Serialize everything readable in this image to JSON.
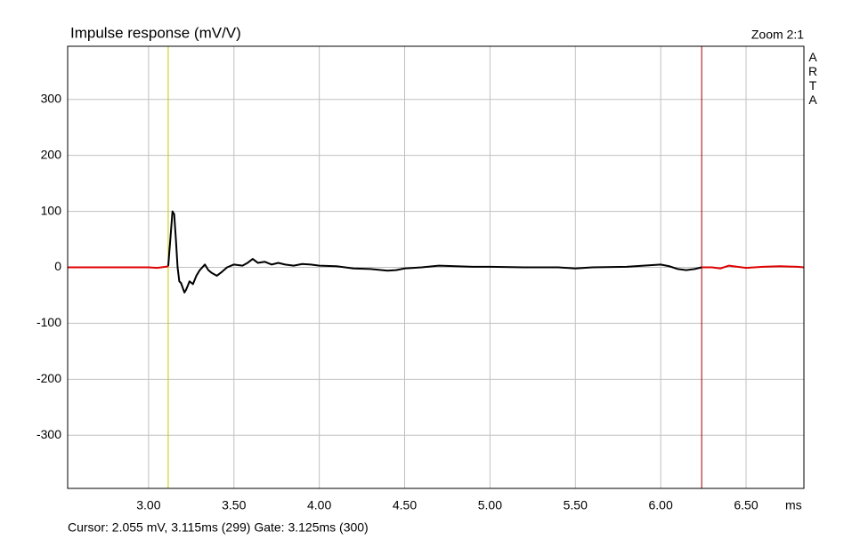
{
  "chart_data": {
    "type": "line",
    "title": "Impulse response (mV/V)",
    "zoom_label": "Zoom 2:1",
    "brand": "ARTA",
    "x_label": "ms",
    "status": "Cursor: 2.055 mV, 3.115ms (299)  Gate: 3.125ms (300)",
    "x": [
      2.526,
      3.0,
      3.05,
      3.1,
      3.115,
      3.13,
      3.14,
      3.15,
      3.16,
      3.17,
      3.18,
      3.19,
      3.21,
      3.22,
      3.24,
      3.26,
      3.28,
      3.3,
      3.33,
      3.35,
      3.37,
      3.4,
      3.43,
      3.46,
      3.5,
      3.55,
      3.58,
      3.61,
      3.64,
      3.68,
      3.72,
      3.76,
      3.8,
      3.85,
      3.9,
      3.95,
      4.0,
      4.1,
      4.2,
      4.3,
      4.4,
      4.45,
      4.5,
      4.6,
      4.7,
      4.8,
      4.9,
      5.0,
      5.2,
      5.4,
      5.5,
      5.6,
      5.8,
      5.9,
      6.0,
      6.05,
      6.1,
      6.15,
      6.2,
      6.24,
      6.3,
      6.35,
      6.4,
      6.45,
      6.5,
      6.6,
      6.7,
      6.8,
      6.839
    ],
    "series": [
      {
        "color": "#000000",
        "values": [
          null,
          null,
          null,
          null,
          2,
          60,
          100,
          95,
          50,
          0,
          -25,
          -28,
          -45,
          -40,
          -25,
          -30,
          -15,
          -5,
          5,
          -5,
          -10,
          -15,
          -8,
          0,
          5,
          3,
          8,
          15,
          8,
          10,
          5,
          8,
          5,
          3,
          6,
          5,
          3,
          2,
          -2,
          -3,
          -6,
          -5,
          -2,
          0,
          3,
          2,
          1,
          1,
          0,
          0,
          -2,
          0,
          1,
          3,
          5,
          2,
          -3,
          -5,
          -3,
          0,
          null,
          null,
          null,
          null,
          null,
          null,
          null,
          null,
          null
        ]
      },
      {
        "color": "#e00000",
        "values": [
          0,
          0,
          -1,
          1,
          2,
          null,
          null,
          null,
          null,
          null,
          null,
          null,
          null,
          null,
          null,
          null,
          null,
          null,
          null,
          null,
          null,
          null,
          null,
          null,
          null,
          null,
          null,
          null,
          null,
          null,
          null,
          null,
          null,
          null,
          null,
          null,
          null,
          null,
          null,
          null,
          null,
          null,
          null,
          null,
          null,
          null,
          null,
          null,
          null,
          null,
          null,
          null,
          null,
          null,
          null,
          null,
          null,
          null,
          null,
          0,
          0,
          -2,
          3,
          1,
          -1,
          1,
          2,
          1,
          0
        ]
      }
    ],
    "cursor": {
      "x": 3.115,
      "color": "#c8c800"
    },
    "gate_end": {
      "x": 6.24,
      "color": "#a00000"
    },
    "xlim": [
      2.526,
      6.839
    ],
    "ylim": [
      -395,
      395
    ],
    "xticks": [
      {
        "value": 3,
        "label": "3.00"
      },
      {
        "value": 3.5,
        "label": "3.50"
      },
      {
        "value": 4,
        "label": "4.00"
      },
      {
        "value": 4.5,
        "label": "4.50"
      },
      {
        "value": 5,
        "label": "5.00"
      },
      {
        "value": 5.5,
        "label": "5.50"
      },
      {
        "value": 6,
        "label": "6.00"
      },
      {
        "value": 6.5,
        "label": "6.50"
      }
    ],
    "yticks": [
      -300,
      -200,
      -100,
      0,
      100,
      200,
      300
    ],
    "grid": true
  }
}
